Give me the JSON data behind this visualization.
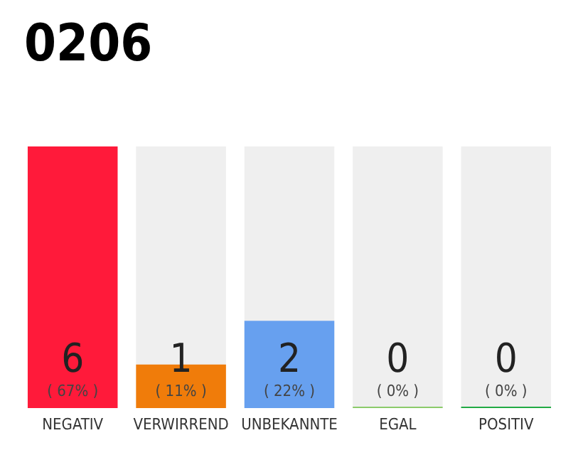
{
  "chart_data": {
    "type": "bar",
    "title": "0206",
    "categories": [
      "NEGATIV",
      "VERWIRREND",
      "UNBEKANNTE",
      "EGAL",
      "POSITIV"
    ],
    "values": [
      6,
      1,
      2,
      0,
      0
    ],
    "colors": [
      "#ff1a3a",
      "#f07c0a",
      "#67a0ef",
      "#8ccb6a",
      "#22aa44"
    ],
    "value_labels": [
      "6\n( 67% )",
      "1\n( 11% )",
      "2\n( 22% )",
      "0\n( 0% )",
      "0\n( 0% )"
    ]
  }
}
